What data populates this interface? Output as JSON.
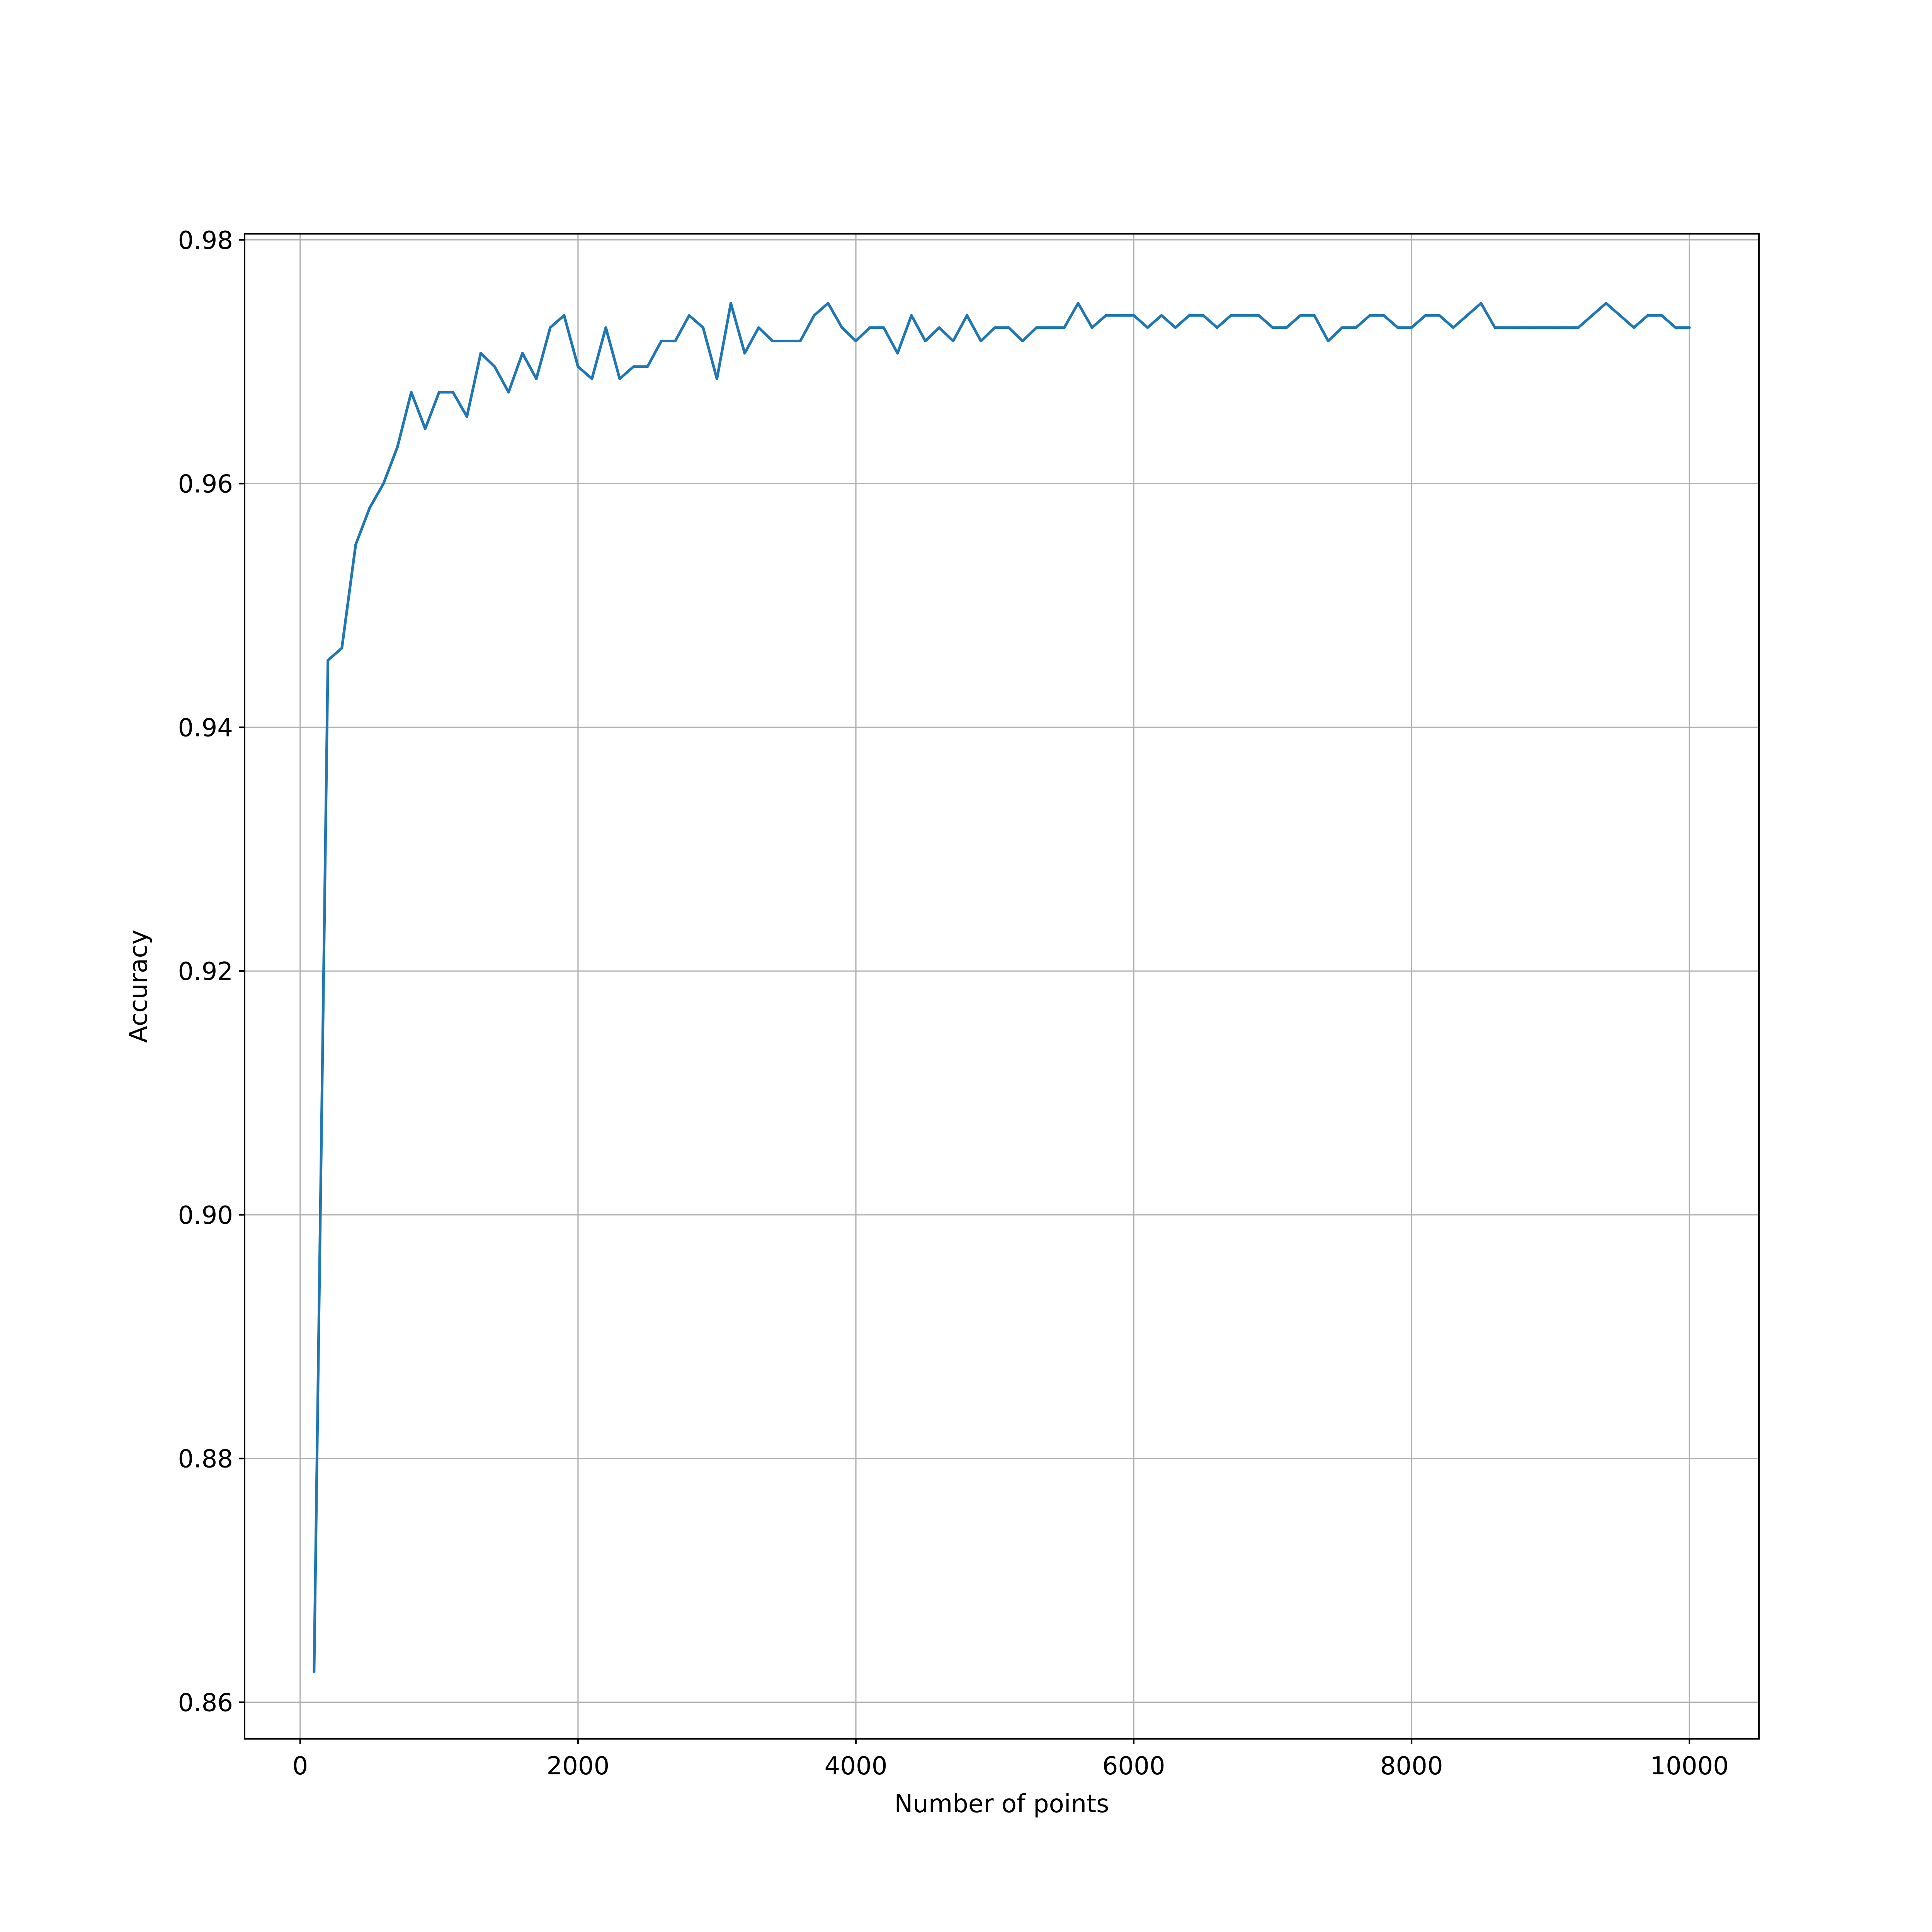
{
  "chart_data": {
    "type": "line",
    "title": "",
    "xlabel": "Number of points",
    "ylabel": "Accuracy",
    "xlim": [
      -400,
      10500
    ],
    "ylim": [
      0.857,
      0.9805
    ],
    "grid": true,
    "colors": {
      "series": "#1f77b4",
      "grid": "#b0b0b0",
      "axes": "#000000"
    },
    "x_ticks": [
      {
        "value": 0,
        "label": "0"
      },
      {
        "value": 2000,
        "label": "2000"
      },
      {
        "value": 4000,
        "label": "4000"
      },
      {
        "value": 6000,
        "label": "6000"
      },
      {
        "value": 8000,
        "label": "8000"
      },
      {
        "value": 10000,
        "label": "10000"
      }
    ],
    "y_ticks": [
      {
        "value": 0.86,
        "label": "0.86"
      },
      {
        "value": 0.88,
        "label": "0.88"
      },
      {
        "value": 0.9,
        "label": "0.90"
      },
      {
        "value": 0.92,
        "label": "0.92"
      },
      {
        "value": 0.94,
        "label": "0.94"
      },
      {
        "value": 0.96,
        "label": "0.96"
      },
      {
        "value": 0.98,
        "label": "0.98"
      }
    ],
    "series": [
      {
        "x": [
          100,
          200,
          300,
          400,
          500,
          600,
          700,
          800,
          900,
          1000,
          1100,
          1200,
          1300,
          1400,
          1500,
          1600,
          1700,
          1800,
          1900,
          2000,
          2100,
          2200,
          2300,
          2400,
          2500,
          2600,
          2700,
          2800,
          2900,
          3000,
          3100,
          3200,
          3300,
          3400,
          3500,
          3600,
          3700,
          3800,
          3900,
          4000,
          4100,
          4200,
          4300,
          4400,
          4500,
          4600,
          4700,
          4800,
          4900,
          5000,
          5100,
          5200,
          5300,
          5400,
          5500,
          5600,
          5700,
          5800,
          5900,
          6000,
          6100,
          6200,
          6300,
          6400,
          6500,
          6600,
          6700,
          6800,
          6900,
          7000,
          7100,
          7200,
          7300,
          7400,
          7500,
          7600,
          7700,
          7800,
          7900,
          8000,
          8100,
          8200,
          8300,
          8400,
          8500,
          8600,
          8700,
          8800,
          8900,
          9000,
          9100,
          9200,
          9300,
          9400,
          9500,
          9600,
          9700,
          9800,
          9900,
          10000
        ],
        "y": [
          0.8625,
          0.9455,
          0.9465,
          0.955,
          0.958,
          0.96,
          0.963,
          0.9675,
          0.9645,
          0.9675,
          0.9675,
          0.9655,
          0.9707,
          0.9696,
          0.9675,
          0.9707,
          0.9686,
          0.9728,
          0.9738,
          0.9696,
          0.9686,
          0.9728,
          0.9686,
          0.9696,
          0.9696,
          0.9717,
          0.9717,
          0.9738,
          0.9728,
          0.9686,
          0.9748,
          0.9707,
          0.9728,
          0.9717,
          0.9717,
          0.9717,
          0.9738,
          0.9748,
          0.9728,
          0.9717,
          0.9728,
          0.9728,
          0.9707,
          0.9738,
          0.9717,
          0.9728,
          0.9717,
          0.9738,
          0.9717,
          0.9728,
          0.9728,
          0.9717,
          0.9728,
          0.9728,
          0.9728,
          0.9748,
          0.9728,
          0.9738,
          0.9738,
          0.9738,
          0.9728,
          0.9738,
          0.9728,
          0.9738,
          0.9738,
          0.9728,
          0.9738,
          0.9738,
          0.9738,
          0.9728,
          0.9728,
          0.9738,
          0.9738,
          0.9717,
          0.9728,
          0.9728,
          0.9738,
          0.9738,
          0.9728,
          0.9728,
          0.9738,
          0.9738,
          0.9728,
          0.9738,
          0.9748,
          0.9728,
          0.9728,
          0.9728,
          0.9728,
          0.9728,
          0.9728,
          0.9728,
          0.9738,
          0.9748,
          0.9738,
          0.9728,
          0.9738,
          0.9738,
          0.9728,
          0.9728
        ]
      }
    ]
  }
}
